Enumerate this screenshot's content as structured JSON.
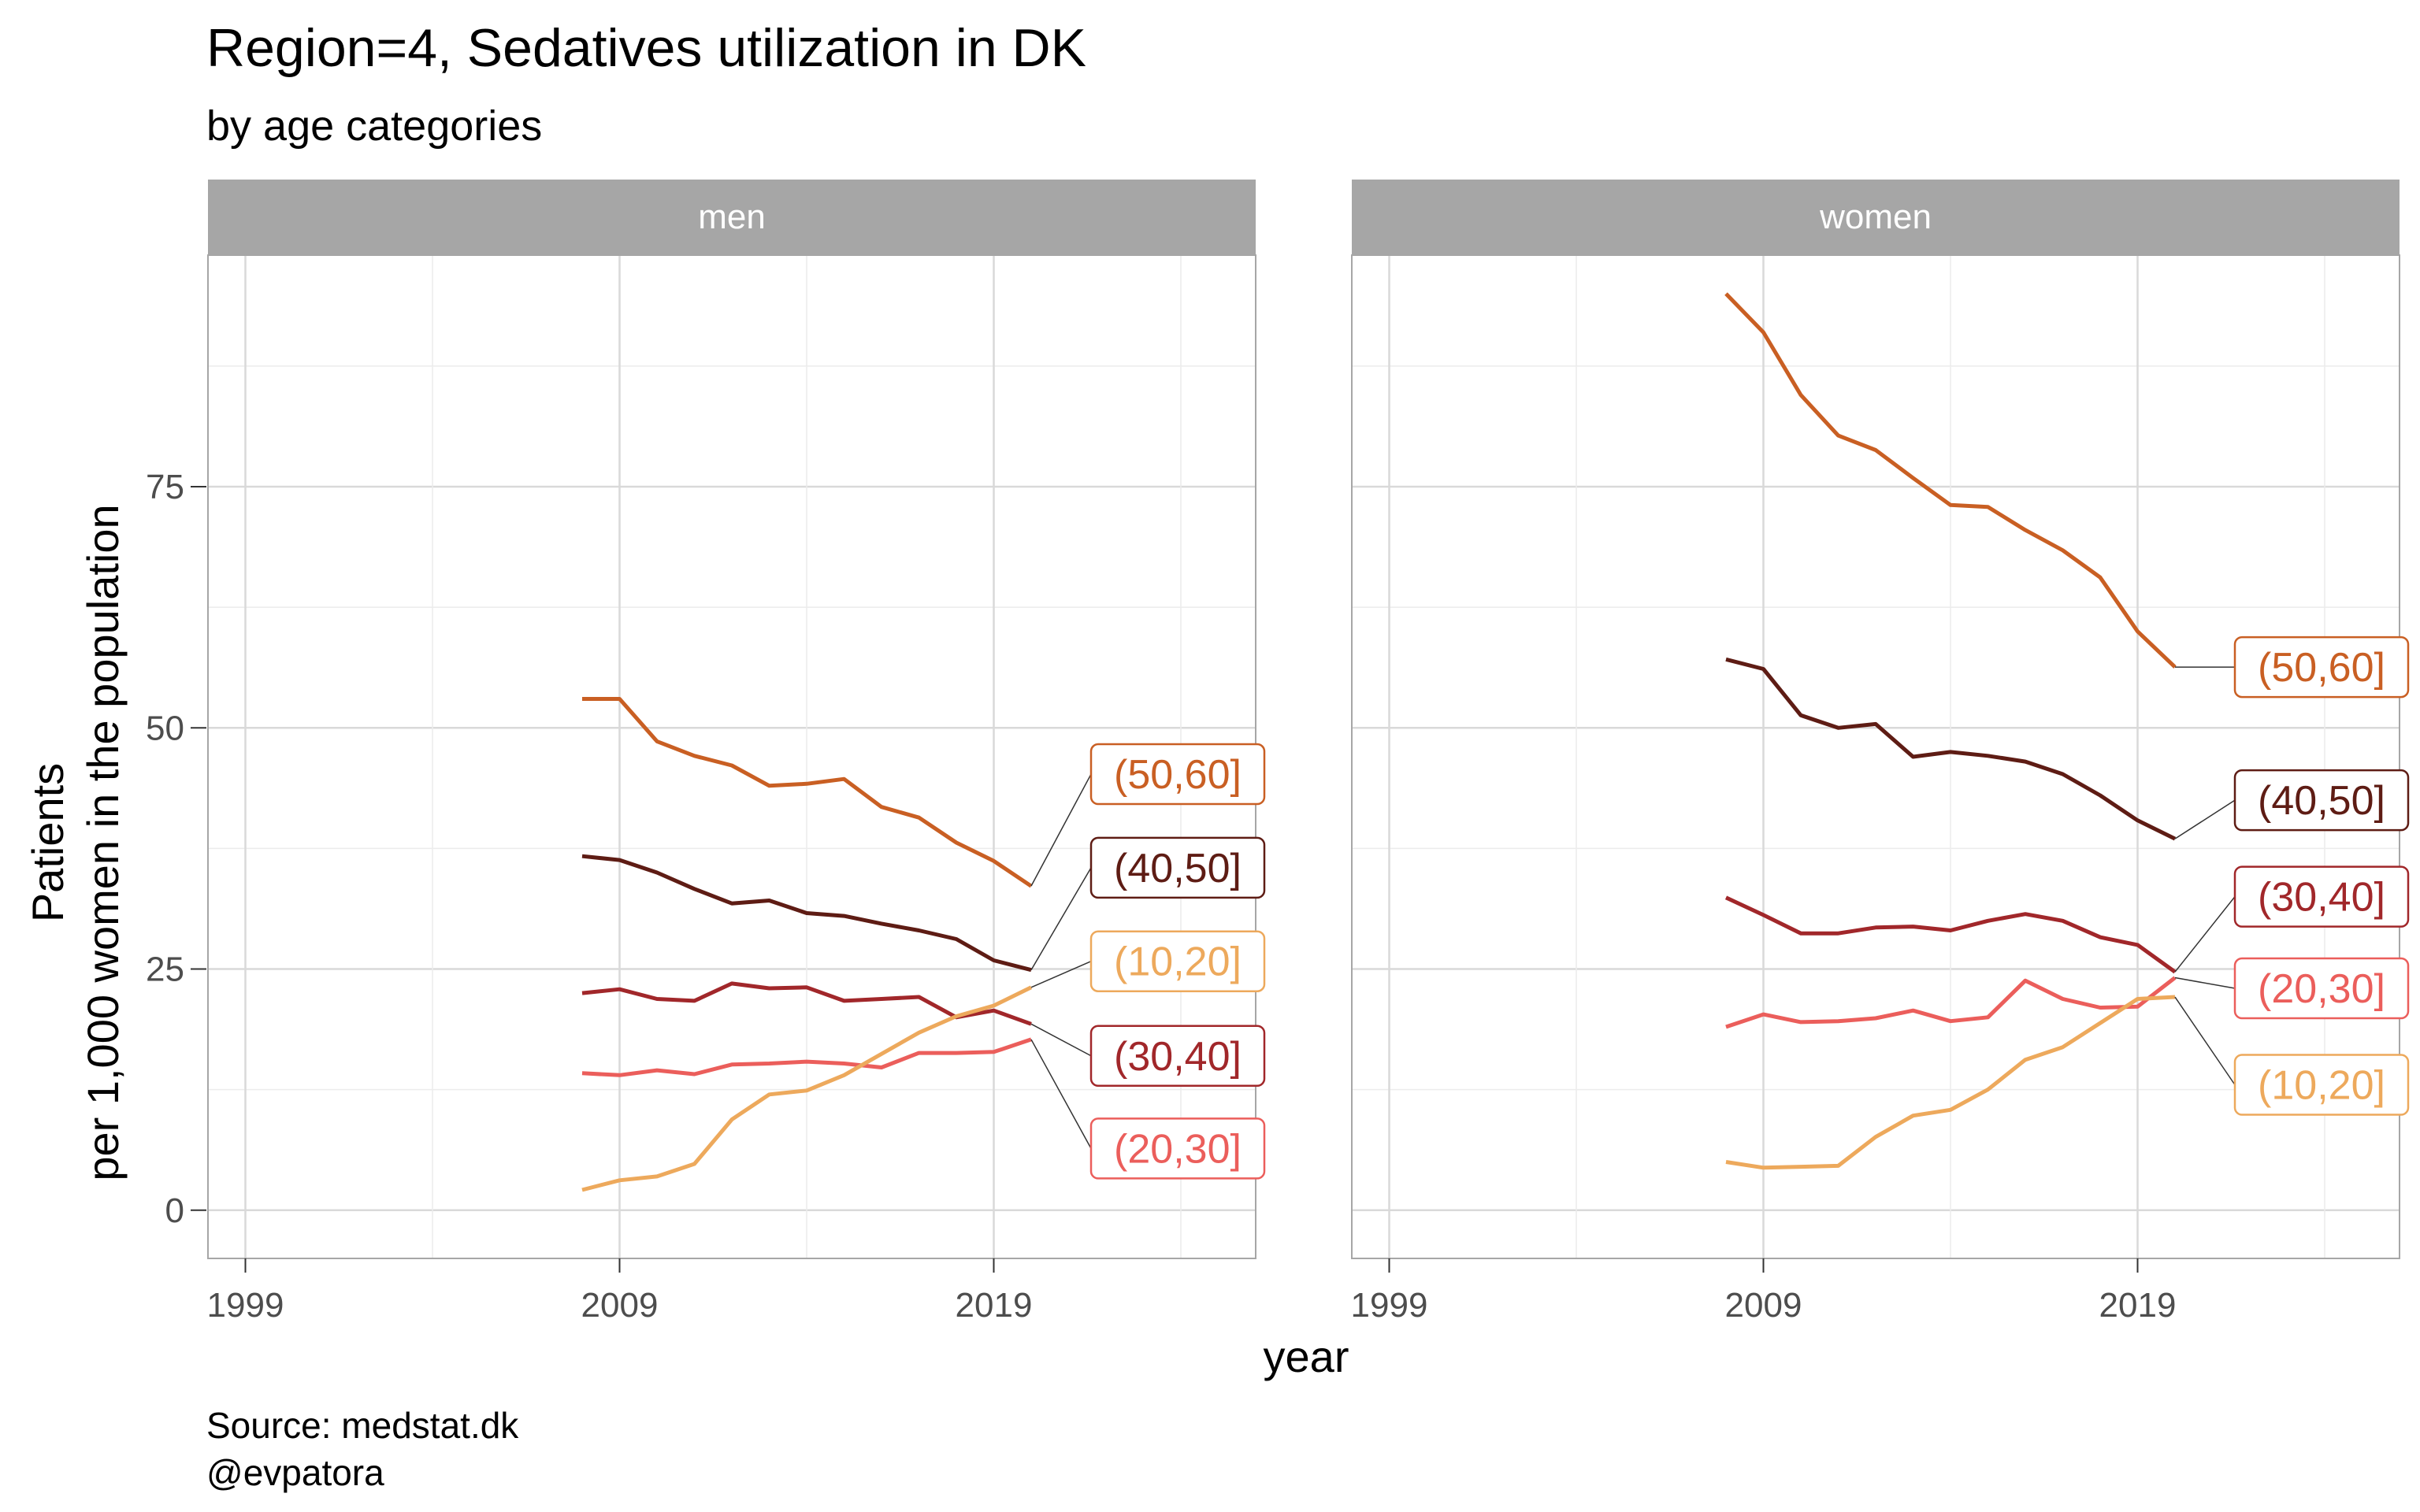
{
  "title": "Region=4, Sedatives utilization in DK",
  "subtitle": "by age categories",
  "caption_lines": [
    "Source: medstat.dk",
    "@evpatora"
  ],
  "chart_data": {
    "type": "line",
    "xlabel": "year",
    "ylabel_lines": [
      "Patients",
      "per 1,000 women in the population"
    ],
    "xlim": [
      1998,
      2026
    ],
    "ylim": [
      -5,
      99
    ],
    "x_ticks": [
      1999,
      2009,
      2019
    ],
    "y_ticks": [
      0,
      25,
      50,
      75
    ],
    "grid": true,
    "colors": {
      "(10,20]": "#EDA95C",
      "(20,30]": "#EB5E5B",
      "(30,40]": "#A1272A",
      "(40,50]": "#5E1C14",
      "(50,60]": "#C95F23"
    },
    "x": [
      2008,
      2009,
      2010,
      2011,
      2012,
      2013,
      2014,
      2015,
      2016,
      2017,
      2018,
      2019,
      2020
    ],
    "panels": [
      {
        "strip": "men",
        "series": [
          {
            "name": "(50,60]",
            "values": [
              53.0,
              53.0,
              48.6,
              47.1,
              46.1,
              44.0,
              44.2,
              44.7,
              41.8,
              40.7,
              38.1,
              36.2,
              33.6
            ]
          },
          {
            "name": "(40,50]",
            "values": [
              36.7,
              36.3,
              35.0,
              33.3,
              31.8,
              32.1,
              30.8,
              30.5,
              29.7,
              29.0,
              28.1,
              25.9,
              24.9
            ]
          },
          {
            "name": "(30,40]",
            "values": [
              22.5,
              22.9,
              21.9,
              21.7,
              23.5,
              23.0,
              23.1,
              21.7,
              21.9,
              22.1,
              20.0,
              20.7,
              19.3
            ]
          },
          {
            "name": "(20,30]",
            "values": [
              14.2,
              14.0,
              14.5,
              14.1,
              15.1,
              15.2,
              15.4,
              15.2,
              14.8,
              16.3,
              16.3,
              16.4,
              17.7
            ]
          },
          {
            "name": "(10,20]",
            "values": [
              2.1,
              3.1,
              3.5,
              4.8,
              9.4,
              12.0,
              12.4,
              14.0,
              16.2,
              18.4,
              20.1,
              21.2,
              23.1
            ]
          }
        ],
        "labels": [
          {
            "name": "(50,60]",
            "label_y": 45.2
          },
          {
            "name": "(40,50]",
            "label_y": 35.5
          },
          {
            "name": "(10,20]",
            "label_y": 25.8
          },
          {
            "name": "(30,40]",
            "label_y": 16.0
          },
          {
            "name": "(20,30]",
            "label_y": 6.4
          }
        ]
      },
      {
        "strip": "women",
        "series": [
          {
            "name": "(50,60]",
            "values": [
              95.0,
              91.0,
              84.5,
              80.3,
              78.8,
              75.9,
              73.1,
              72.9,
              70.5,
              68.4,
              65.6,
              60.0,
              56.3
            ]
          },
          {
            "name": "(40,50]",
            "values": [
              57.1,
              56.1,
              51.3,
              50.0,
              50.4,
              47.0,
              47.5,
              47.1,
              46.5,
              45.2,
              43.0,
              40.4,
              38.5
            ]
          },
          {
            "name": "(30,40]",
            "values": [
              32.4,
              30.6,
              28.7,
              28.7,
              29.3,
              29.4,
              29.0,
              30.0,
              30.7,
              30.0,
              28.3,
              27.5,
              24.7
            ]
          },
          {
            "name": "(20,30]",
            "values": [
              19.0,
              20.3,
              19.5,
              19.6,
              19.9,
              20.7,
              19.6,
              20.0,
              23.8,
              21.9,
              21.0,
              21.1,
              24.1
            ]
          },
          {
            "name": "(10,20]",
            "values": [
              5.0,
              4.4,
              4.5,
              4.6,
              7.6,
              9.8,
              10.4,
              12.5,
              15.6,
              16.9,
              19.4,
              21.9,
              22.1
            ]
          }
        ],
        "labels": [
          {
            "name": "(50,60]",
            "label_y": 56.3
          },
          {
            "name": "(40,50]",
            "label_y": 42.5
          },
          {
            "name": "(30,40]",
            "label_y": 32.5
          },
          {
            "name": "(20,30]",
            "label_y": 23.0
          },
          {
            "name": "(10,20]",
            "label_y": 13.0
          }
        ]
      }
    ]
  }
}
